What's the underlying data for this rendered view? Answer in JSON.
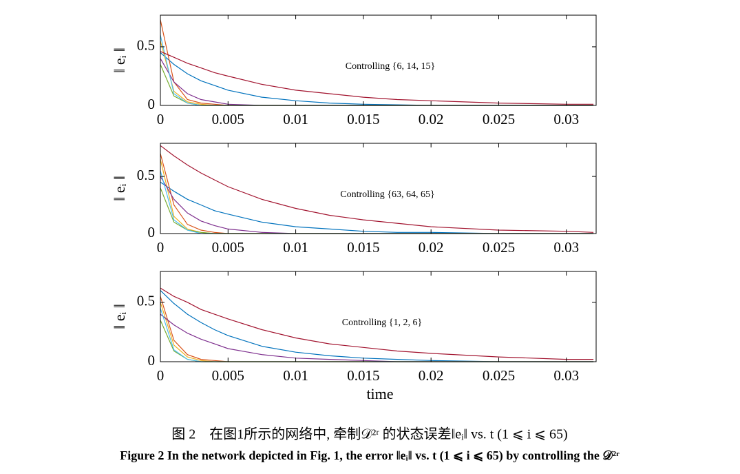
{
  "chart_data": [
    {
      "type": "line",
      "annotation": "Controlling {6, 14, 15}",
      "y_label": "‖ eᵢ ‖",
      "x": [
        0,
        0.001,
        0.002,
        0.003,
        0.004,
        0.005,
        0.0075,
        0.01,
        0.0125,
        0.015,
        0.0175,
        0.02,
        0.025,
        0.03,
        0.032
      ],
      "xlim": [
        0,
        0.0322
      ],
      "xticks": [
        0,
        0.005,
        0.01,
        0.015,
        0.02,
        0.025,
        0.03
      ],
      "ylim": [
        0,
        0.77
      ],
      "yticks": [
        0,
        0.5
      ],
      "series": [
        {
          "color": "#0072bd",
          "values": [
            0.45,
            0.35,
            0.27,
            0.21,
            0.17,
            0.13,
            0.07,
            0.04,
            0.02,
            0.01,
            0.005,
            0,
            0,
            0,
            0
          ]
        },
        {
          "color": "#d95319",
          "values": [
            0.73,
            0.2,
            0.05,
            0.02,
            0.01,
            0,
            0,
            0,
            0,
            0,
            0,
            0,
            0,
            0,
            0
          ]
        },
        {
          "color": "#edb120",
          "values": [
            0.55,
            0.12,
            0.03,
            0.01,
            0,
            0,
            0,
            0,
            0,
            0,
            0,
            0,
            0,
            0,
            0
          ]
        },
        {
          "color": "#7e2f8e",
          "values": [
            0.4,
            0.2,
            0.1,
            0.05,
            0.03,
            0.01,
            0,
            0,
            0,
            0,
            0,
            0,
            0,
            0,
            0
          ]
        },
        {
          "color": "#77ac30",
          "values": [
            0.35,
            0.08,
            0.02,
            0,
            0,
            0,
            0,
            0,
            0,
            0,
            0,
            0,
            0,
            0,
            0
          ]
        },
        {
          "color": "#4dbeee",
          "values": [
            0.6,
            0.1,
            0.02,
            0,
            0,
            0,
            0,
            0,
            0,
            0,
            0,
            0,
            0,
            0,
            0
          ]
        },
        {
          "color": "#a2142f",
          "values": [
            0.46,
            0.41,
            0.36,
            0.32,
            0.28,
            0.25,
            0.18,
            0.13,
            0.1,
            0.07,
            0.05,
            0.04,
            0.02,
            0.01,
            0.01
          ]
        }
      ]
    },
    {
      "type": "line",
      "annotation": "Controlling {63, 64, 65}",
      "y_label": "‖ eᵢ ‖",
      "x": [
        0,
        0.001,
        0.002,
        0.003,
        0.004,
        0.005,
        0.0075,
        0.01,
        0.0125,
        0.015,
        0.0175,
        0.02,
        0.025,
        0.03,
        0.032
      ],
      "xlim": [
        0,
        0.0322
      ],
      "xticks": [
        0,
        0.005,
        0.01,
        0.015,
        0.02,
        0.025,
        0.03
      ],
      "ylim": [
        0,
        0.79
      ],
      "yticks": [
        0,
        0.5
      ],
      "series": [
        {
          "color": "#0072bd",
          "values": [
            0.45,
            0.37,
            0.3,
            0.25,
            0.2,
            0.17,
            0.1,
            0.06,
            0.04,
            0.02,
            0.01,
            0.01,
            0,
            0,
            0
          ]
        },
        {
          "color": "#d95319",
          "values": [
            0.7,
            0.25,
            0.08,
            0.03,
            0.01,
            0,
            0,
            0,
            0,
            0,
            0,
            0,
            0,
            0,
            0
          ]
        },
        {
          "color": "#edb120",
          "values": [
            0.65,
            0.15,
            0.04,
            0.01,
            0,
            0,
            0,
            0,
            0,
            0,
            0,
            0,
            0,
            0,
            0
          ]
        },
        {
          "color": "#7e2f8e",
          "values": [
            0.5,
            0.3,
            0.18,
            0.11,
            0.07,
            0.04,
            0.01,
            0,
            0,
            0,
            0,
            0,
            0,
            0,
            0
          ]
        },
        {
          "color": "#77ac30",
          "values": [
            0.4,
            0.1,
            0.03,
            0.01,
            0,
            0,
            0,
            0,
            0,
            0,
            0,
            0,
            0,
            0,
            0
          ]
        },
        {
          "color": "#4dbeee",
          "values": [
            0.55,
            0.12,
            0.03,
            0,
            0,
            0,
            0,
            0,
            0,
            0,
            0,
            0,
            0,
            0,
            0
          ]
        },
        {
          "color": "#a2142f",
          "values": [
            0.77,
            0.68,
            0.6,
            0.53,
            0.47,
            0.41,
            0.3,
            0.22,
            0.16,
            0.12,
            0.09,
            0.06,
            0.03,
            0.02,
            0.01
          ]
        }
      ]
    },
    {
      "type": "line",
      "annotation": "Controlling {1, 2, 6}",
      "y_label": "‖ eᵢ ‖",
      "x_label": "time",
      "x": [
        0,
        0.001,
        0.002,
        0.003,
        0.004,
        0.005,
        0.0075,
        0.01,
        0.0125,
        0.015,
        0.0175,
        0.02,
        0.025,
        0.03,
        0.032
      ],
      "xlim": [
        0,
        0.0322
      ],
      "xticks": [
        0,
        0.005,
        0.01,
        0.015,
        0.02,
        0.025,
        0.03
      ],
      "ylim": [
        0,
        0.76
      ],
      "yticks": [
        0,
        0.5
      ],
      "series": [
        {
          "color": "#0072bd",
          "values": [
            0.6,
            0.49,
            0.4,
            0.33,
            0.27,
            0.22,
            0.13,
            0.08,
            0.05,
            0.03,
            0.02,
            0.01,
            0,
            0,
            0
          ]
        },
        {
          "color": "#d95319",
          "values": [
            0.55,
            0.18,
            0.06,
            0.02,
            0.01,
            0,
            0,
            0,
            0,
            0,
            0,
            0,
            0,
            0,
            0
          ]
        },
        {
          "color": "#edb120",
          "values": [
            0.5,
            0.14,
            0.04,
            0.01,
            0,
            0,
            0,
            0,
            0,
            0,
            0,
            0,
            0,
            0,
            0
          ]
        },
        {
          "color": "#7e2f8e",
          "values": [
            0.4,
            0.31,
            0.24,
            0.19,
            0.15,
            0.11,
            0.06,
            0.03,
            0.02,
            0.01,
            0,
            0,
            0,
            0,
            0
          ]
        },
        {
          "color": "#77ac30",
          "values": [
            0.35,
            0.09,
            0.02,
            0,
            0,
            0,
            0,
            0,
            0,
            0,
            0,
            0,
            0,
            0,
            0
          ]
        },
        {
          "color": "#4dbeee",
          "values": [
            0.45,
            0.1,
            0.02,
            0,
            0,
            0,
            0,
            0,
            0,
            0,
            0,
            0,
            0,
            0,
            0
          ]
        },
        {
          "color": "#a2142f",
          "values": [
            0.62,
            0.55,
            0.5,
            0.44,
            0.4,
            0.36,
            0.27,
            0.2,
            0.15,
            0.12,
            0.09,
            0.07,
            0.04,
            0.02,
            0.02
          ]
        }
      ]
    }
  ],
  "caption": {
    "chinese": "图 2　在图1所示的网络中, 牵制𝒟²ʳ 的状态误差‖eᵢ‖ vs. t (1 ⩽ i ⩽ 65)",
    "english": "Figure 2   In the network depicted in Fig. 1, the error ‖eᵢ‖ vs. t (1 ⩽ i ⩽ 65) by controlling the 𝒟²ʳ"
  }
}
